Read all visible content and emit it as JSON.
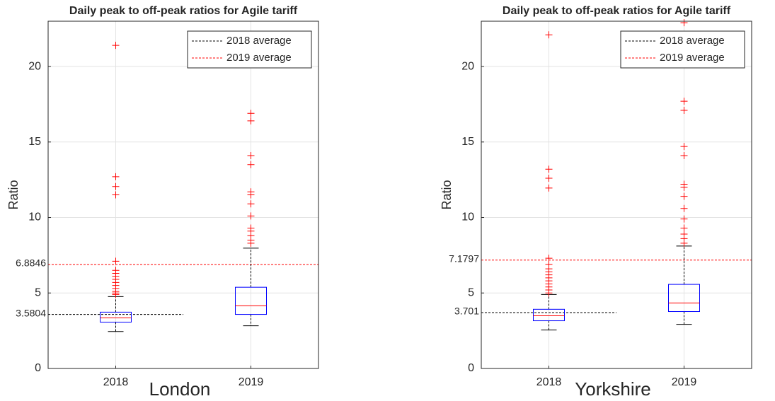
{
  "chart_data": [
    {
      "type": "box",
      "title": "Daily peak to off-peak ratios for Agile tariff",
      "y_label": "Ratio",
      "caption": "London",
      "categories": [
        "2018",
        "2019"
      ],
      "boxes": [
        {
          "whisker_low": 2.45,
          "q1": 3.07,
          "median": 3.35,
          "q3": 3.73,
          "whisker_high": 4.76,
          "outliers": [
            21.4,
            12.7,
            12.05,
            11.5,
            7.1,
            6.5,
            6.3,
            6.1,
            5.9,
            5.7,
            5.5,
            5.3,
            5.1,
            5.0,
            4.9
          ]
        },
        {
          "whisker_low": 2.83,
          "q1": 3.58,
          "median": 4.15,
          "q3": 5.38,
          "whisker_high": 7.97,
          "outliers": [
            16.9,
            16.4,
            14.1,
            13.5,
            11.7,
            11.5,
            10.9,
            10.1,
            9.3,
            9.1,
            8.8,
            8.5,
            8.3
          ]
        }
      ],
      "box_color": "#0000ff",
      "median_color": "#ff0000",
      "whisker_color": "#000000",
      "outlier_color": "#ff0000",
      "reference_lines": [
        {
          "name": "2018 average",
          "value": 3.5804,
          "color": "#000000"
        },
        {
          "name": "2019 average",
          "value": 6.8846,
          "color": "#ff0000"
        }
      ],
      "legend": "upper right",
      "ylim": [
        0,
        23
      ],
      "yticks": [
        0,
        5,
        10,
        15,
        20
      ],
      "grid": true
    },
    {
      "type": "box",
      "title": "Daily peak to off-peak ratios for Agile tariff",
      "y_label": "Ratio",
      "caption": "Yorkshire",
      "categories": [
        "2018",
        "2019"
      ],
      "boxes": [
        {
          "whisker_low": 2.55,
          "q1": 3.16,
          "median": 3.49,
          "q3": 3.92,
          "whisker_high": 4.9,
          "outliers": [
            22.1,
            13.2,
            12.6,
            11.95,
            7.3,
            6.9,
            6.6,
            6.4,
            6.2,
            6.0,
            5.8,
            5.6,
            5.4,
            5.2,
            5.0
          ]
        },
        {
          "whisker_low": 2.92,
          "q1": 3.77,
          "median": 4.34,
          "q3": 5.57,
          "whisker_high": 8.11,
          "outliers": [
            22.9,
            17.7,
            17.1,
            14.7,
            14.1,
            12.2,
            12.0,
            11.4,
            10.6,
            9.9,
            9.3,
            8.9,
            8.6,
            8.3
          ]
        }
      ],
      "box_color": "#0000ff",
      "median_color": "#ff0000",
      "whisker_color": "#000000",
      "outlier_color": "#ff0000",
      "reference_lines": [
        {
          "name": "2018 average",
          "value": 3.701,
          "color": "#000000"
        },
        {
          "name": "2019 average",
          "value": 7.1797,
          "color": "#ff0000"
        }
      ],
      "legend": "upper right",
      "ylim": [
        0,
        23
      ],
      "yticks": [
        0,
        5,
        10,
        15,
        20
      ],
      "grid": true
    }
  ]
}
